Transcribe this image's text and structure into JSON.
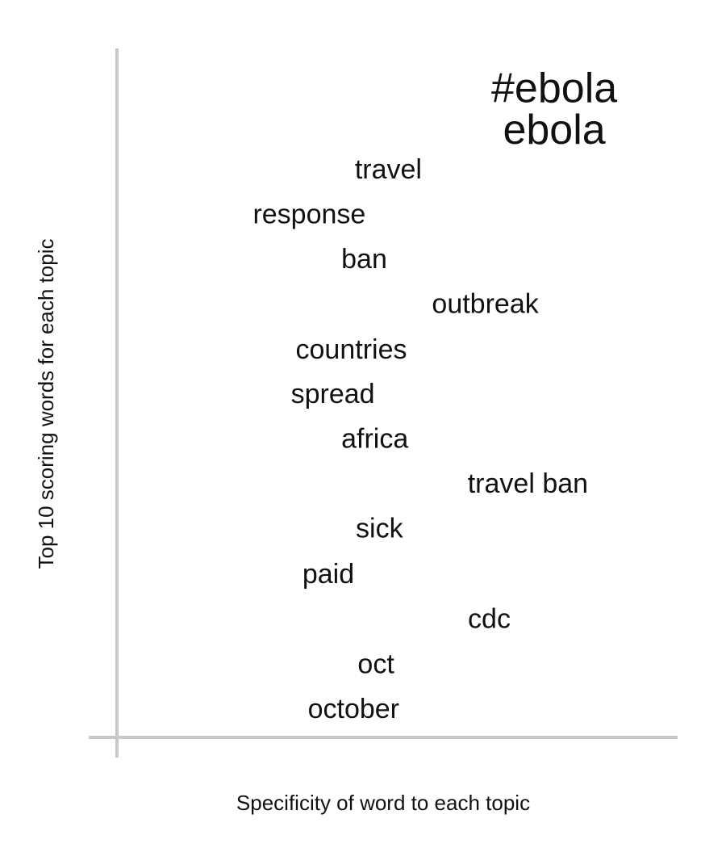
{
  "chart_data": {
    "type": "scatter",
    "title": "",
    "xlabel": "Specificity of word to each topic",
    "ylabel": "Top 10 scoring words for each topic",
    "xlim": [
      0,
      1
    ],
    "ylim": [
      0,
      1
    ],
    "grid": false,
    "legend": "none",
    "colors": {
      "axis": "#c8c8c8",
      "text": "#111111"
    },
    "words": [
      {
        "text": "#ebola",
        "x": 0.78,
        "y": 0.943,
        "emphasis": "large"
      },
      {
        "text": "ebola",
        "x": 0.78,
        "y": 0.883,
        "emphasis": "large"
      },
      {
        "text": "travel",
        "x": 0.484,
        "y": 0.824
      },
      {
        "text": "response",
        "x": 0.343,
        "y": 0.759
      },
      {
        "text": "ban",
        "x": 0.441,
        "y": 0.694
      },
      {
        "text": "outbreak",
        "x": 0.657,
        "y": 0.629
      },
      {
        "text": "countries",
        "x": 0.418,
        "y": 0.563
      },
      {
        "text": "spread",
        "x": 0.385,
        "y": 0.498
      },
      {
        "text": "africa",
        "x": 0.46,
        "y": 0.433
      },
      {
        "text": "travel ban",
        "x": 0.733,
        "y": 0.368
      },
      {
        "text": "sick",
        "x": 0.468,
        "y": 0.303
      },
      {
        "text": "paid",
        "x": 0.377,
        "y": 0.237
      },
      {
        "text": "cdc",
        "x": 0.664,
        "y": 0.172
      },
      {
        "text": "oct",
        "x": 0.462,
        "y": 0.106
      },
      {
        "text": "october",
        "x": 0.422,
        "y": 0.041
      }
    ]
  }
}
